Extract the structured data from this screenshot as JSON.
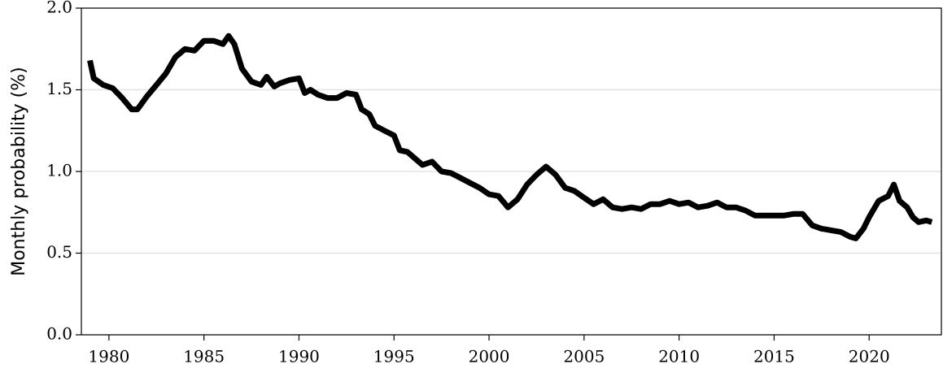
{
  "chart_data": {
    "type": "line",
    "y_label": "Monthly probability (%)",
    "x": [
      1979.0,
      1979.2,
      1979.7,
      1980.2,
      1980.7,
      1981.2,
      1981.5,
      1982.0,
      1982.5,
      1983.0,
      1983.5,
      1984.0,
      1984.5,
      1985.0,
      1985.5,
      1986.0,
      1986.3,
      1986.6,
      1987.0,
      1987.5,
      1988.0,
      1988.3,
      1988.7,
      1989.0,
      1989.5,
      1990.0,
      1990.3,
      1990.6,
      1991.0,
      1991.5,
      1992.0,
      1992.5,
      1993.0,
      1993.3,
      1993.7,
      1994.0,
      1994.5,
      1995.0,
      1995.3,
      1995.7,
      1996.0,
      1996.5,
      1997.0,
      1997.5,
      1998.0,
      1998.5,
      1999.0,
      1999.5,
      2000.0,
      2000.5,
      2001.0,
      2001.5,
      2002.0,
      2002.5,
      2003.0,
      2003.5,
      2004.0,
      2004.5,
      2005.0,
      2005.5,
      2006.0,
      2006.5,
      2007.0,
      2007.5,
      2008.0,
      2008.5,
      2009.0,
      2009.5,
      2010.0,
      2010.5,
      2011.0,
      2011.5,
      2012.0,
      2012.5,
      2013.0,
      2013.5,
      2014.0,
      2014.5,
      2015.0,
      2015.5,
      2016.0,
      2016.5,
      2017.0,
      2017.5,
      2018.0,
      2018.5,
      2019.0,
      2019.3,
      2019.7,
      2020.0,
      2020.5,
      2021.0,
      2021.3,
      2021.6,
      2022.0,
      2022.3,
      2022.6,
      2023.0,
      2023.3
    ],
    "series": [
      {
        "name": "Monthly probability",
        "color": "#000000",
        "values": [
          1.68,
          1.57,
          1.53,
          1.51,
          1.45,
          1.38,
          1.38,
          1.46,
          1.53,
          1.6,
          1.7,
          1.75,
          1.74,
          1.8,
          1.8,
          1.78,
          1.83,
          1.78,
          1.63,
          1.55,
          1.53,
          1.58,
          1.52,
          1.54,
          1.56,
          1.57,
          1.48,
          1.5,
          1.47,
          1.45,
          1.45,
          1.48,
          1.47,
          1.38,
          1.35,
          1.28,
          1.25,
          1.22,
          1.13,
          1.12,
          1.09,
          1.04,
          1.06,
          1.0,
          0.99,
          0.96,
          0.93,
          0.9,
          0.86,
          0.85,
          0.78,
          0.83,
          0.92,
          0.98,
          1.03,
          0.98,
          0.9,
          0.88,
          0.84,
          0.8,
          0.83,
          0.78,
          0.77,
          0.78,
          0.77,
          0.8,
          0.8,
          0.82,
          0.8,
          0.81,
          0.78,
          0.79,
          0.81,
          0.78,
          0.78,
          0.76,
          0.73,
          0.73,
          0.73,
          0.73,
          0.74,
          0.74,
          0.67,
          0.65,
          0.64,
          0.63,
          0.6,
          0.59,
          0.65,
          0.72,
          0.82,
          0.85,
          0.92,
          0.82,
          0.78,
          0.72,
          0.69,
          0.7,
          0.69
        ]
      }
    ],
    "xlim": [
      1978.55,
      2023.8
    ],
    "xticks": [
      1980,
      1985,
      1990,
      1995,
      2000,
      2005,
      2010,
      2015,
      2020
    ],
    "ylim": [
      0,
      2
    ],
    "yticks": [
      {
        "value": 0,
        "label": "0.0"
      },
      0.5,
      {
        "value": 1,
        "label": "1.0"
      },
      1.5,
      {
        "value": 2,
        "label": "2.0"
      }
    ],
    "grid": true
  }
}
